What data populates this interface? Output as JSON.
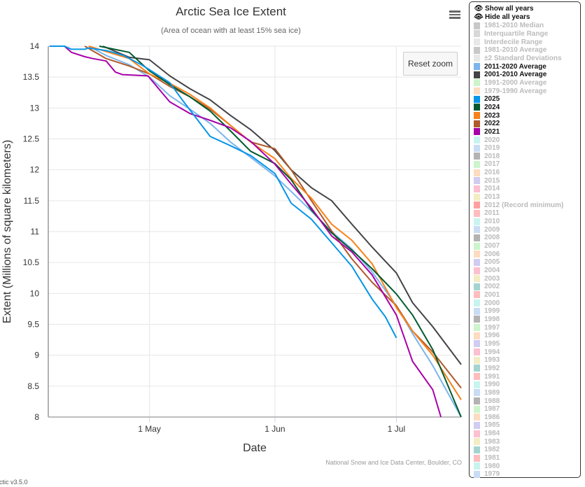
{
  "title": "Arctic Sea Ice Extent",
  "subtitle": "(Area of ocean with at least 15% sea ice)",
  "reset_zoom": "Reset zoom",
  "credits": "National Snow and Ice Data Center, Boulder, CO",
  "version": "rctic v3.5.0",
  "menu_icon": "hamburger-icon",
  "legend": {
    "show_all": "Show all years",
    "show_icon": "eye-icon",
    "hide_all": "Hide all years",
    "hide_icon": "eye-slash-icon",
    "items": [
      {
        "label": "1981-2010 Median",
        "color": "#c8c8c8",
        "on": false
      },
      {
        "label": "Interquartile Range",
        "color": "#d8d8d8",
        "on": false
      },
      {
        "label": "Interdecile Range",
        "color": "#e8e8e8",
        "on": false
      },
      {
        "label": "1981-2010 Average",
        "color": "#c8c8c8",
        "on": false
      },
      {
        "label": "±2 Standard Deviations",
        "color": "#e8e8e8",
        "on": false
      },
      {
        "label": "2011-2020 Average",
        "color": "#7cb5ec",
        "on": true
      },
      {
        "label": "2001-2010 Average",
        "color": "#434348",
        "on": true
      },
      {
        "label": "1991-2000 Average",
        "color": "#ccf5cc",
        "on": false
      },
      {
        "label": "1979-1990 Average",
        "color": "#fddcc0",
        "on": false
      },
      {
        "label": "2025",
        "color": "#0895e8",
        "on": true
      },
      {
        "label": "2024",
        "color": "#005a2e",
        "on": true
      },
      {
        "label": "2023",
        "color": "#f7811a",
        "on": true
      },
      {
        "label": "2022",
        "color": "#b05a2c",
        "on": true
      },
      {
        "label": "2021",
        "color": "#a800a8",
        "on": true
      },
      {
        "label": "2020",
        "color": "#c8f4ef",
        "on": false
      },
      {
        "label": "2019",
        "color": "#c8dcf4",
        "on": false
      },
      {
        "label": "2018",
        "color": "#b3b3b3",
        "on": false
      },
      {
        "label": "2017",
        "color": "#ccf5cc",
        "on": false
      },
      {
        "label": "2016",
        "color": "#fddcc0",
        "on": false
      },
      {
        "label": "2015",
        "color": "#d0ccf2",
        "on": false
      },
      {
        "label": "2014",
        "color": "#fcc0d0",
        "on": false
      },
      {
        "label": "2013",
        "color": "#f3edc4",
        "on": false
      },
      {
        "label": "2012 (Record minimum)",
        "color": "#ffa0a0",
        "on": false
      },
      {
        "label": "2011",
        "color": "#ffbdbd",
        "on": false
      },
      {
        "label": "2010",
        "color": "#c8f4ef",
        "on": false
      },
      {
        "label": "2009",
        "color": "#c8dcf4",
        "on": false
      },
      {
        "label": "2008",
        "color": "#b3b3b3",
        "on": false
      },
      {
        "label": "2007",
        "color": "#ccf5cc",
        "on": false
      },
      {
        "label": "2006",
        "color": "#fddcc0",
        "on": false
      },
      {
        "label": "2005",
        "color": "#d0ccf2",
        "on": false
      },
      {
        "label": "2004",
        "color": "#fcc0d0",
        "on": false
      },
      {
        "label": "2003",
        "color": "#f3edc4",
        "on": false
      },
      {
        "label": "2002",
        "color": "#a4d4d0",
        "on": false
      },
      {
        "label": "2001",
        "color": "#ffbdbd",
        "on": false
      },
      {
        "label": "2000",
        "color": "#c8f4ef",
        "on": false
      },
      {
        "label": "1999",
        "color": "#c8dcf4",
        "on": false
      },
      {
        "label": "1998",
        "color": "#b3b3b3",
        "on": false
      },
      {
        "label": "1997",
        "color": "#ccf5cc",
        "on": false
      },
      {
        "label": "1996",
        "color": "#fddcc0",
        "on": false
      },
      {
        "label": "1995",
        "color": "#d0ccf2",
        "on": false
      },
      {
        "label": "1994",
        "color": "#fcc0d0",
        "on": false
      },
      {
        "label": "1993",
        "color": "#f3edc4",
        "on": false
      },
      {
        "label": "1992",
        "color": "#a4d4d0",
        "on": false
      },
      {
        "label": "1991",
        "color": "#ffbdbd",
        "on": false
      },
      {
        "label": "1990",
        "color": "#c8f4ef",
        "on": false
      },
      {
        "label": "1989",
        "color": "#c8dcf4",
        "on": false
      },
      {
        "label": "1988",
        "color": "#b3b3b3",
        "on": false
      },
      {
        "label": "1987",
        "color": "#ccf5cc",
        "on": false
      },
      {
        "label": "1986",
        "color": "#fddcc0",
        "on": false
      },
      {
        "label": "1985",
        "color": "#d0ccf2",
        "on": false
      },
      {
        "label": "1984",
        "color": "#fcc0d0",
        "on": false
      },
      {
        "label": "1983",
        "color": "#f3edc4",
        "on": false
      },
      {
        "label": "1982",
        "color": "#a4d4d0",
        "on": false
      },
      {
        "label": "1981",
        "color": "#ffbdbd",
        "on": false
      },
      {
        "label": "1980",
        "color": "#c8f4ef",
        "on": false
      },
      {
        "label": "1979",
        "color": "#c8dcf4",
        "on": false
      }
    ]
  },
  "chart_data": {
    "type": "line",
    "title": "Arctic Sea Ice Extent",
    "subtitle": "(Area of ocean with at least 15% sea ice)",
    "xlabel": "Date",
    "ylabel": "Extent (Millions of square kilometers)",
    "x_unit": "day of year",
    "xlim": [
      96,
      198
    ],
    "ylim": [
      8,
      14
    ],
    "yticks": [
      8,
      8.5,
      9,
      9.5,
      10,
      10.5,
      11,
      11.5,
      12,
      12.5,
      13,
      13.5,
      14
    ],
    "xticks": [
      {
        "x": 121,
        "label": "1 May"
      },
      {
        "x": 152,
        "label": "1 Jun"
      },
      {
        "x": 182,
        "label": "1 Jul"
      }
    ],
    "grid": true,
    "series": [
      {
        "name": "2011-2020 Average",
        "color": "#7cb5ec",
        "points": [
          [
            106,
            14
          ],
          [
            110.3,
            13.85
          ],
          [
            116,
            13.7
          ],
          [
            121,
            13.5
          ],
          [
            126,
            13.2
          ],
          [
            131,
            12.98
          ],
          [
            136,
            12.75
          ],
          [
            141,
            12.45
          ],
          [
            146,
            12.2
          ],
          [
            152,
            11.9
          ],
          [
            156,
            11.65
          ],
          [
            161,
            11.33
          ],
          [
            166,
            11.0
          ],
          [
            171,
            10.72
          ],
          [
            176,
            10.35
          ],
          [
            182,
            9.8
          ],
          [
            186,
            9.35
          ],
          [
            191,
            8.83
          ],
          [
            198,
            8.0
          ]
        ]
      },
      {
        "name": "2001-2010 Average",
        "color": "#434348",
        "points": [
          [
            109.5,
            14
          ],
          [
            116,
            13.82
          ],
          [
            121,
            13.78
          ],
          [
            126,
            13.52
          ],
          [
            131,
            13.31
          ],
          [
            136,
            13.13
          ],
          [
            141,
            12.88
          ],
          [
            146,
            12.65
          ],
          [
            152,
            12.31
          ],
          [
            156,
            12.0
          ],
          [
            161,
            11.71
          ],
          [
            166,
            11.5
          ],
          [
            171,
            11.12
          ],
          [
            176,
            10.75
          ],
          [
            182,
            10.33
          ],
          [
            186,
            9.85
          ],
          [
            191,
            9.46
          ],
          [
            198,
            8.85
          ]
        ]
      },
      {
        "name": "2022",
        "color": "#b05a2c",
        "points": [
          [
            105,
            14
          ],
          [
            110.3,
            13.8
          ],
          [
            116,
            13.68
          ],
          [
            121,
            13.55
          ],
          [
            126,
            13.35
          ],
          [
            131,
            13.18
          ],
          [
            136,
            12.98
          ],
          [
            141,
            12.72
          ],
          [
            146,
            12.45
          ],
          [
            152,
            12.34
          ],
          [
            156,
            12.0
          ],
          [
            161,
            11.5
          ],
          [
            166,
            11.01
          ],
          [
            171,
            10.56
          ],
          [
            176,
            10.18
          ],
          [
            182,
            9.8
          ],
          [
            186,
            9.39
          ],
          [
            191,
            9.05
          ],
          [
            198,
            8.47
          ]
        ]
      },
      {
        "name": "2023",
        "color": "#f7811a",
        "points": [
          [
            106,
            14
          ],
          [
            116,
            13.8
          ],
          [
            121,
            13.55
          ],
          [
            126,
            13.4
          ],
          [
            131,
            13.22
          ],
          [
            136,
            13.0
          ],
          [
            141,
            12.72
          ],
          [
            146,
            12.45
          ],
          [
            152,
            12.18
          ],
          [
            156,
            11.86
          ],
          [
            161,
            11.54
          ],
          [
            166,
            11.12
          ],
          [
            171,
            10.86
          ],
          [
            176,
            10.48
          ],
          [
            182,
            9.77
          ],
          [
            186,
            9.39
          ],
          [
            191,
            9.0
          ],
          [
            198,
            8.28
          ]
        ]
      },
      {
        "name": "2024",
        "color": "#005a2e",
        "points": [
          [
            108.6,
            14
          ],
          [
            116,
            13.9
          ],
          [
            121,
            13.6
          ],
          [
            126,
            13.38
          ],
          [
            131,
            13.18
          ],
          [
            136,
            12.95
          ],
          [
            141,
            12.63
          ],
          [
            146,
            12.3
          ],
          [
            152,
            12.1
          ],
          [
            156,
            11.84
          ],
          [
            161,
            11.35
          ],
          [
            166,
            10.98
          ],
          [
            171,
            10.7
          ],
          [
            176,
            10.4
          ],
          [
            182,
            9.99
          ],
          [
            186,
            9.65
          ],
          [
            191,
            9.09
          ],
          [
            198,
            8.0
          ]
        ]
      },
      {
        "name": "2021",
        "color": "#a800a8",
        "points": [
          [
            96.3,
            14
          ],
          [
            100,
            14
          ],
          [
            101.7,
            13.9
          ],
          [
            105,
            13.83
          ],
          [
            107,
            13.8
          ],
          [
            110.3,
            13.76
          ],
          [
            112.6,
            13.58
          ],
          [
            114.3,
            13.54
          ],
          [
            120.6,
            13.52
          ],
          [
            126,
            13.1
          ],
          [
            131,
            12.91
          ],
          [
            136,
            12.8
          ],
          [
            141,
            12.68
          ],
          [
            146,
            12.46
          ],
          [
            152,
            12.09
          ],
          [
            156,
            11.77
          ],
          [
            161,
            11.38
          ],
          [
            166,
            10.93
          ],
          [
            171,
            10.67
          ],
          [
            176,
            10.3
          ],
          [
            182,
            9.65
          ],
          [
            186,
            8.9
          ],
          [
            191,
            8.44
          ],
          [
            193,
            8.0
          ]
        ]
      },
      {
        "name": "2025",
        "color": "#0895e8",
        "points": [
          [
            96.3,
            14
          ],
          [
            100,
            14
          ],
          [
            101.7,
            13.95
          ],
          [
            105,
            13.95
          ],
          [
            106,
            13.97
          ],
          [
            110.3,
            13.93
          ],
          [
            112,
            13.9
          ],
          [
            114.6,
            13.85
          ],
          [
            119,
            13.7
          ],
          [
            121,
            13.62
          ],
          [
            126,
            13.41
          ],
          [
            129,
            13.14
          ],
          [
            136,
            12.54
          ],
          [
            141,
            12.39
          ],
          [
            146,
            12.23
          ],
          [
            152,
            11.94
          ],
          [
            156,
            11.46
          ],
          [
            161,
            11.2
          ],
          [
            166,
            10.82
          ],
          [
            171,
            10.44
          ],
          [
            176,
            9.91
          ],
          [
            179.3,
            9.62
          ],
          [
            182,
            9.28
          ]
        ]
      }
    ]
  }
}
